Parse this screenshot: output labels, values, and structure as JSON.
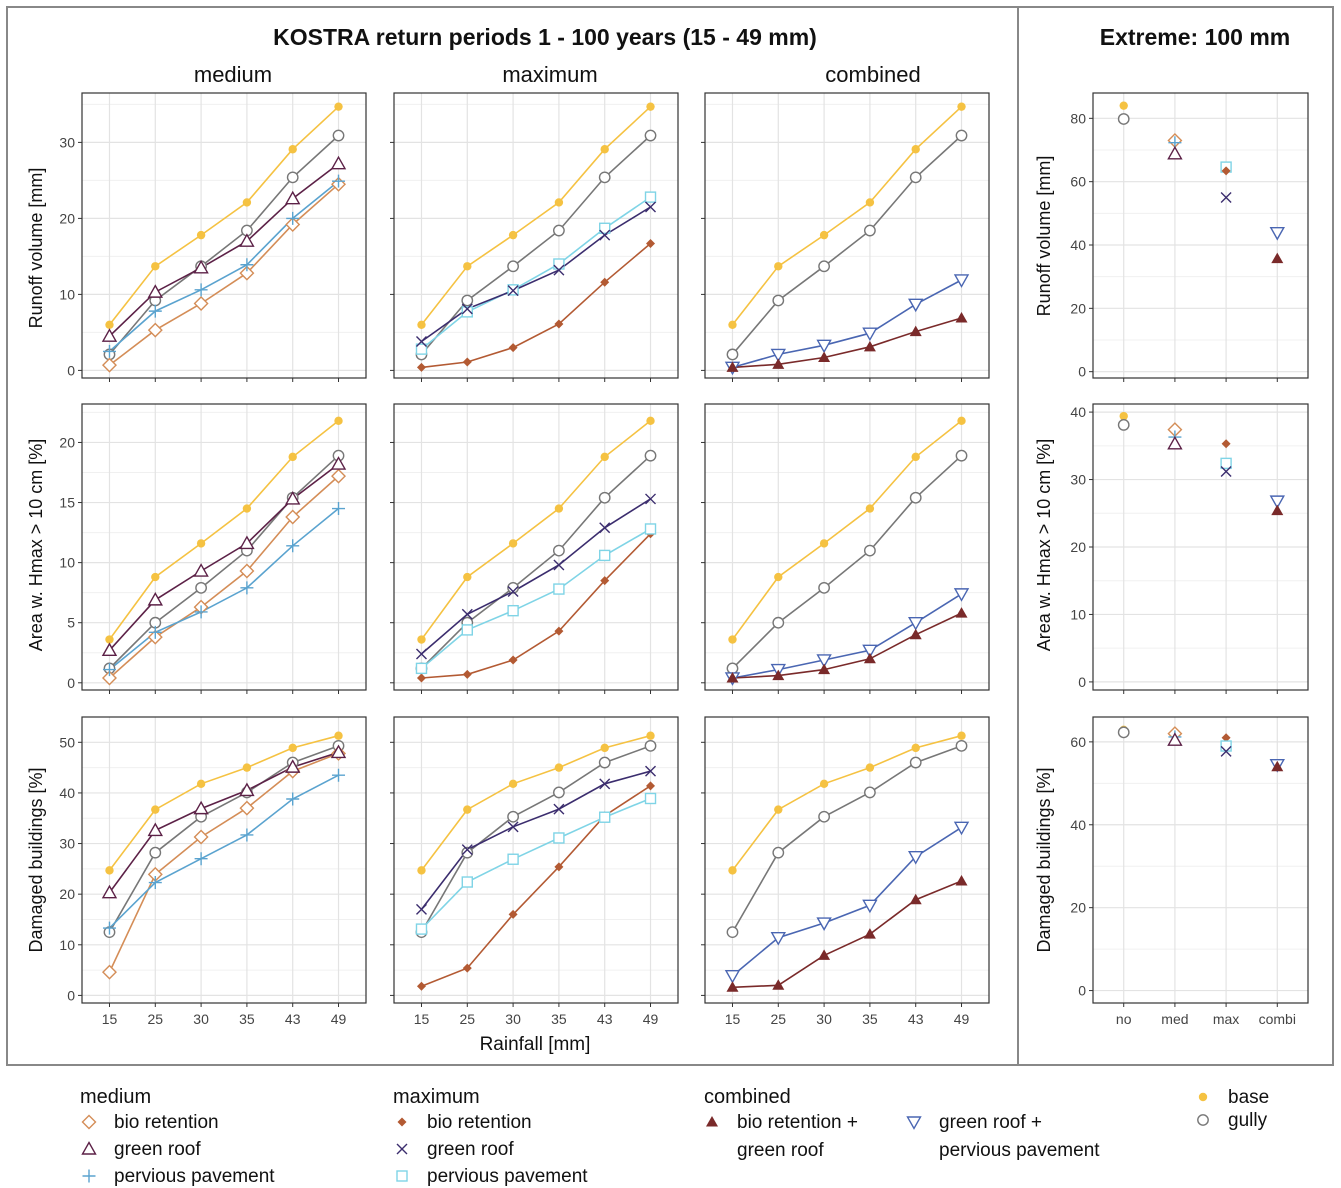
{
  "titles": {
    "left": "KOSTRA return periods 1 - 100 years (15 - 49 mm)",
    "right": "Extreme: 100 mm"
  },
  "columns": [
    "medium",
    "maximum",
    "combined"
  ],
  "row_labels": [
    "Runoff volume [mm]",
    "Area w. Hmax > 10 cm [%]",
    "Damaged buildings [%]"
  ],
  "x_axis_label": "Rainfall [mm]",
  "colors": {
    "base": "#f5c242",
    "gully": "#777777",
    "med_bio": "#d48d57",
    "med_green": "#5c2147",
    "med_pervious": "#5aa3cf",
    "max_bio": "#b35a33",
    "max_green": "#3b2d6e",
    "max_pervious": "#7fd4e6",
    "comb_bio_green": "#7a2a2a",
    "comb_green_pervious": "#4a66b2"
  },
  "legend": {
    "groups": [
      {
        "title": "medium",
        "items": [
          {
            "label": "bio retention",
            "series": "med_bio",
            "marker": "diamond-open"
          },
          {
            "label": "green roof",
            "series": "med_green",
            "marker": "triangle-open"
          },
          {
            "label": "pervious pavement",
            "series": "med_pervious",
            "marker": "plus"
          }
        ]
      },
      {
        "title": "maximum",
        "items": [
          {
            "label": "bio retention",
            "series": "max_bio",
            "marker": "diamond-filled"
          },
          {
            "label": "green roof",
            "series": "max_green",
            "marker": "cross"
          },
          {
            "label": "pervious pavement",
            "series": "max_pervious",
            "marker": "square-open"
          }
        ]
      },
      {
        "title": "combined",
        "items": [
          {
            "label": "bio retention +",
            "label2": "green roof",
            "series": "comb_bio_green",
            "marker": "triangle-filled"
          },
          {
            "label": "green roof +",
            "label2": "pervious pavement",
            "series": "comb_green_pervious",
            "marker": "triangle-down-open"
          }
        ]
      },
      {
        "title": "",
        "items": [
          {
            "label": "base",
            "series": "base",
            "marker": "circle-filled"
          },
          {
            "label": "gully",
            "series": "gully",
            "marker": "circle-open"
          }
        ]
      }
    ]
  },
  "chart_data": {
    "type": "line",
    "x": [
      "15",
      "25",
      "30",
      "35",
      "43",
      "49"
    ],
    "panel_ticks": [
      [
        0,
        10,
        20,
        30
      ],
      [
        0,
        5,
        10,
        15,
        20
      ],
      [
        0,
        10,
        20,
        30,
        40,
        50
      ]
    ],
    "panel_ylim": [
      [
        -1,
        36.5
      ],
      [
        -0.6,
        23.2
      ],
      [
        -1.5,
        55
      ]
    ],
    "rows": [
      {
        "base": [
          6.0,
          13.7,
          17.8,
          22.1,
          29.1,
          34.7
        ],
        "gully": [
          2.1,
          9.2,
          13.7,
          18.4,
          25.4,
          30.9
        ],
        "medium": {
          "med_bio": [
            0.7,
            5.3,
            8.8,
            12.8,
            19.2,
            24.5
          ],
          "med_green": [
            4.5,
            10.3,
            13.5,
            17.0,
            22.6,
            27.2
          ],
          "med_pervious": [
            2.5,
            7.8,
            10.6,
            13.9,
            20.0,
            24.9
          ]
        },
        "maximum": {
          "max_bio": [
            0.4,
            1.1,
            3.0,
            6.1,
            11.6,
            16.7
          ],
          "max_green": [
            3.8,
            8.1,
            10.5,
            13.2,
            17.8,
            21.5
          ],
          "max_pervious": [
            2.8,
            7.7,
            10.6,
            14.0,
            18.7,
            22.8
          ]
        },
        "combined": {
          "comb_bio_green": [
            0.4,
            0.8,
            1.7,
            3.1,
            5.1,
            6.9
          ],
          "comb_green_pervious": [
            0.4,
            2.1,
            3.3,
            4.9,
            8.7,
            11.9
          ]
        }
      },
      {
        "base": [
          3.6,
          8.8,
          11.6,
          14.5,
          18.8,
          21.8
        ],
        "gully": [
          1.2,
          5.0,
          7.9,
          11.0,
          15.4,
          18.9
        ],
        "medium": {
          "med_bio": [
            0.4,
            3.8,
            6.3,
            9.3,
            13.8,
            17.2
          ],
          "med_green": [
            2.7,
            6.9,
            9.3,
            11.6,
            15.3,
            18.2
          ],
          "med_pervious": [
            1.1,
            4.2,
            5.9,
            7.9,
            11.4,
            14.5
          ]
        },
        "maximum": {
          "max_bio": [
            0.4,
            0.7,
            1.9,
            4.3,
            8.5,
            12.4
          ],
          "max_green": [
            2.4,
            5.7,
            7.6,
            9.8,
            12.9,
            15.3
          ],
          "max_pervious": [
            1.2,
            4.4,
            6.0,
            7.8,
            10.6,
            12.8
          ]
        },
        "combined": {
          "comb_bio_green": [
            0.4,
            0.6,
            1.1,
            2.0,
            4.0,
            5.8
          ],
          "comb_green_pervious": [
            0.4,
            1.1,
            1.9,
            2.7,
            5.0,
            7.4
          ]
        }
      },
      {
        "base": [
          24.7,
          36.7,
          41.8,
          45.0,
          48.9,
          51.3
        ],
        "gully": [
          12.5,
          28.2,
          35.3,
          40.1,
          46.0,
          49.3
        ],
        "medium": {
          "med_bio": [
            4.6,
            23.9,
            31.3,
            37.0,
            44.3,
            47.8
          ],
          "med_green": [
            20.3,
            32.6,
            36.9,
            40.5,
            45.1,
            48.0
          ],
          "med_pervious": [
            13.3,
            22.3,
            27.0,
            31.7,
            38.8,
            43.5
          ]
        },
        "maximum": {
          "max_bio": [
            1.8,
            5.4,
            16.0,
            25.4,
            35.5,
            41.4
          ],
          "max_green": [
            17.0,
            28.8,
            33.3,
            36.8,
            41.8,
            44.3
          ],
          "max_pervious": [
            13.1,
            22.4,
            26.9,
            31.1,
            35.2,
            38.9
          ]
        },
        "combined": {
          "comb_bio_green": [
            1.6,
            2.0,
            7.9,
            12.1,
            18.9,
            22.6
          ],
          "comb_green_pervious": [
            3.9,
            11.4,
            14.3,
            17.8,
            27.4,
            33.2
          ]
        }
      }
    ],
    "extreme": {
      "x": [
        "no",
        "med",
        "max",
        "combi"
      ],
      "ticks": [
        [
          0,
          20,
          40,
          60,
          80
        ],
        [
          0,
          10,
          20,
          30,
          40
        ],
        [
          0,
          20,
          40,
          60
        ]
      ],
      "ylim": [
        [
          -2,
          88
        ],
        [
          -1.2,
          41.2
        ],
        [
          -3,
          66
        ]
      ],
      "rows": [
        {
          "points": [
            {
              "x": "no",
              "series": "base",
              "y": 84.0
            },
            {
              "x": "no",
              "series": "gully",
              "y": 79.8
            },
            {
              "x": "med",
              "series": "med_bio",
              "y": 73.0
            },
            {
              "x": "med",
              "series": "med_pervious",
              "y": 72.3
            },
            {
              "x": "med",
              "series": "med_green",
              "y": 68.8
            },
            {
              "x": "max",
              "series": "max_pervious",
              "y": 64.6
            },
            {
              "x": "max",
              "series": "max_bio",
              "y": 63.4
            },
            {
              "x": "max",
              "series": "max_green",
              "y": 55.0
            },
            {
              "x": "combi",
              "series": "comb_green_pervious",
              "y": 43.9
            },
            {
              "x": "combi",
              "series": "comb_bio_green",
              "y": 35.7
            }
          ]
        },
        {
          "points": [
            {
              "x": "no",
              "series": "base",
              "y": 39.4
            },
            {
              "x": "no",
              "series": "gully",
              "y": 38.1
            },
            {
              "x": "med",
              "series": "med_bio",
              "y": 37.4
            },
            {
              "x": "med",
              "series": "med_pervious",
              "y": 36.3
            },
            {
              "x": "med",
              "series": "med_green",
              "y": 35.3
            },
            {
              "x": "max",
              "series": "max_bio",
              "y": 35.3
            },
            {
              "x": "max",
              "series": "max_pervious",
              "y": 32.4
            },
            {
              "x": "max",
              "series": "max_green",
              "y": 31.2
            },
            {
              "x": "combi",
              "series": "comb_green_pervious",
              "y": 26.8
            },
            {
              "x": "combi",
              "series": "comb_bio_green",
              "y": 25.4
            }
          ]
        },
        {
          "points": [
            {
              "x": "no",
              "series": "base",
              "y": 62.9
            },
            {
              "x": "no",
              "series": "gully",
              "y": 62.3
            },
            {
              "x": "med",
              "series": "med_bio",
              "y": 62.0
            },
            {
              "x": "med",
              "series": "med_pervious",
              "y": 61.2
            },
            {
              "x": "med",
              "series": "med_green",
              "y": 60.4
            },
            {
              "x": "max",
              "series": "max_bio",
              "y": 61.0
            },
            {
              "x": "max",
              "series": "max_pervious",
              "y": 59.0
            },
            {
              "x": "max",
              "series": "max_green",
              "y": 57.7
            },
            {
              "x": "combi",
              "series": "comb_green_pervious",
              "y": 54.5
            },
            {
              "x": "combi",
              "series": "comb_bio_green",
              "y": 54.0
            }
          ]
        }
      ]
    }
  }
}
